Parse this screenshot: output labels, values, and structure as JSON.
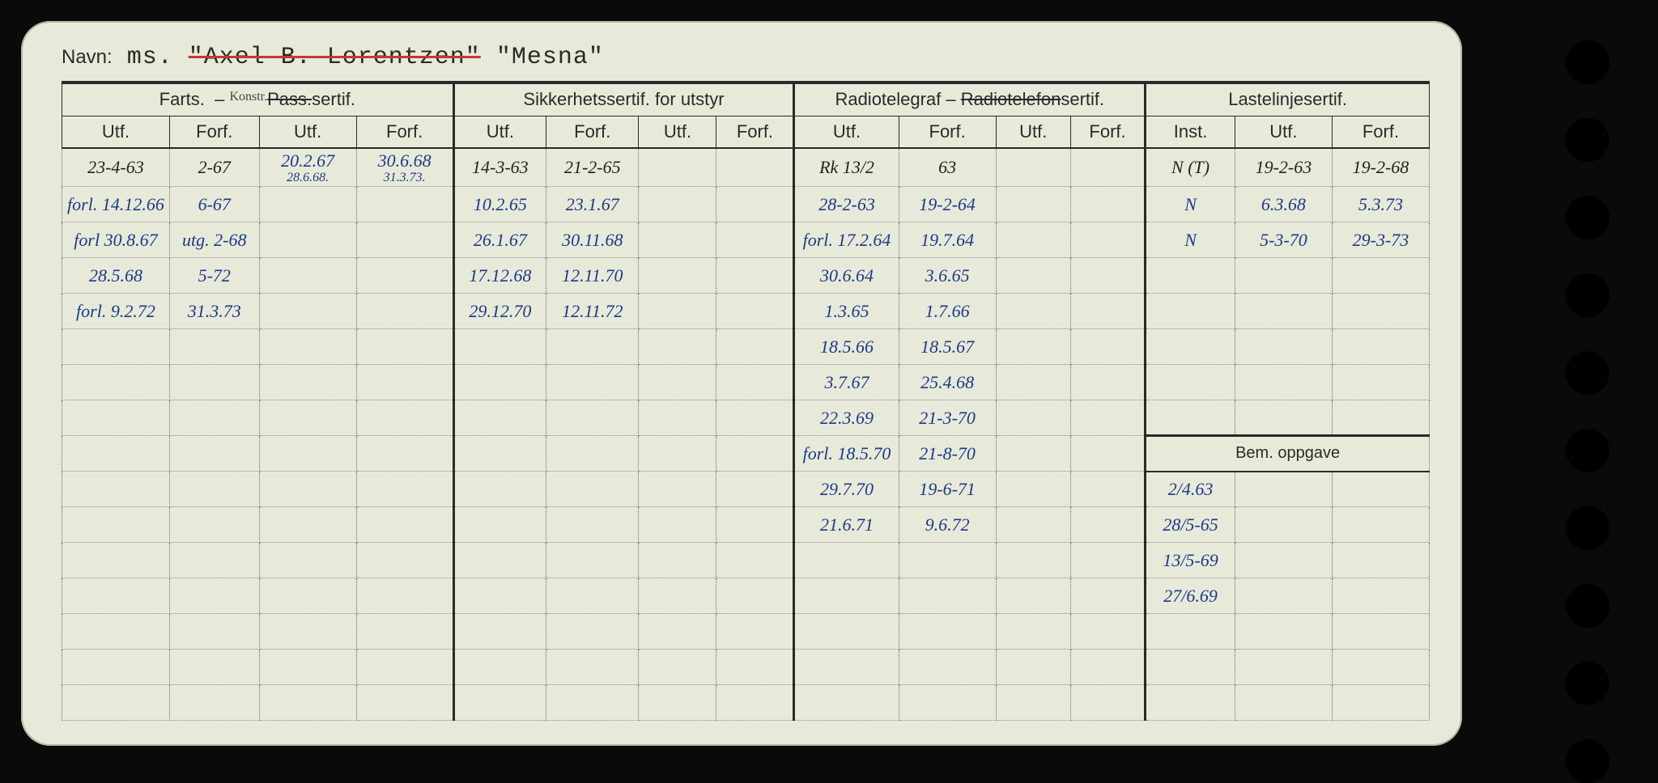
{
  "navn_label": "Navn:",
  "navn_prefix": "ms.",
  "navn_struck": "\"Axel B. Lorentzen\"",
  "navn_current": "\"Mesna\"",
  "colors": {
    "card_bg": "#e8ead9",
    "ink_blue": "#1a3a8a",
    "ink_black": "#222222",
    "rule": "#2a2a2a",
    "dotted": "#6a6a5a",
    "strike_red": "#c3392f"
  },
  "groups": {
    "farts": {
      "label": "Farts.",
      "suffix_struck": "Pass.",
      "suffix": "sertif.",
      "annotation": "Konstr."
    },
    "sikkerhet": "Sikkerhetssertif. for utstyr",
    "radio": {
      "label": "Radiotelegraf –",
      "struck": "Radiotelefon",
      "suffix": "sertif."
    },
    "lastelinje": "Lastelinjesertif.",
    "bem": "Bem. oppgave"
  },
  "subheaders": {
    "utf": "Utf.",
    "forf": "Forf.",
    "inst": "Inst."
  },
  "rows": [
    {
      "farts_utf": "23-4-63",
      "farts_forf": "2-67",
      "farts_utf2": "20.2.67",
      "farts_utf2b": "28.6.68.",
      "farts_forf2": "30.6.68",
      "farts_forf2b": "31.3.73.",
      "sik_utf": "14-3-63",
      "sik_forf": "21-2-65",
      "rad_utf": "Rk 13/2",
      "rad_forf": "63",
      "las_inst": "N (T)",
      "las_utf": "19-2-63",
      "las_forf": "19-2-68"
    },
    {
      "farts_utf": "forl. 14.12.66",
      "farts_forf": "6-67",
      "sik_utf": "10.2.65",
      "sik_forf": "23.1.67",
      "rad_utf": "28-2-63",
      "rad_forf": "19-2-64",
      "las_inst": "N",
      "las_utf": "6.3.68",
      "las_forf": "5.3.73"
    },
    {
      "farts_utf": "forl 30.8.67",
      "farts_forf": "utg. 2-68",
      "sik_utf": "26.1.67",
      "sik_forf": "30.11.68",
      "rad_utf": "forl. 17.2.64",
      "rad_forf": "19.7.64",
      "las_inst": "N",
      "las_utf": "5-3-70",
      "las_forf": "29-3-73"
    },
    {
      "farts_utf": "28.5.68",
      "farts_forf": "5-72",
      "sik_utf": "17.12.68",
      "sik_forf": "12.11.70",
      "rad_utf": "30.6.64",
      "rad_forf": "3.6.65"
    },
    {
      "farts_utf": "forl. 9.2.72",
      "farts_forf": "31.3.73",
      "sik_utf": "29.12.70",
      "sik_forf": "12.11.72",
      "rad_utf": "1.3.65",
      "rad_forf": "1.7.66"
    },
    {
      "rad_utf": "18.5.66",
      "rad_forf": "18.5.67"
    },
    {
      "rad_utf": "3.7.67",
      "rad_forf": "25.4.68"
    },
    {
      "rad_utf": "22.3.69",
      "rad_forf": "21-3-70"
    },
    {
      "rad_utf": "forl. 18.5.70",
      "rad_forf": "21-8-70",
      "bem_header": true
    },
    {
      "rad_utf": "29.7.70",
      "rad_forf": "19-6-71",
      "bem": "2/4.63"
    },
    {
      "rad_utf": "21.6.71",
      "rad_forf": "9.6.72",
      "bem": "28/5-65"
    },
    {
      "bem": "13/5-69"
    },
    {
      "bem": "27/6.69"
    }
  ]
}
